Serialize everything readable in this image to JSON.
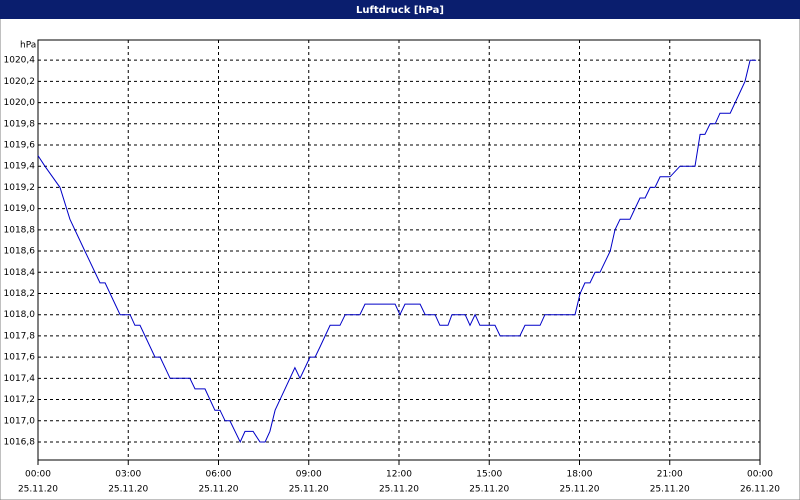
{
  "chart_data": {
    "type": "line",
    "title": "Luftdruck [hPa]",
    "y_label": "hPa",
    "series": [
      {
        "name": "Luftdruck",
        "color": "#0000c8",
        "x": [
          0,
          0.23,
          0.73,
          1.06,
          1.56,
          2.06,
          2.23,
          2.73,
          3.06,
          3.22,
          3.39,
          3.89,
          4.06,
          4.39,
          5.05,
          5.22,
          5.55,
          5.88,
          6.05,
          6.22,
          6.38,
          6.72,
          6.88,
          7.15,
          7.38,
          7.55,
          7.71,
          7.88,
          8.21,
          8.54,
          8.71,
          9.04,
          9.21,
          9.38,
          9.71,
          10.04,
          10.21,
          10.7,
          10.87,
          11.87,
          12.03,
          12.2,
          12.7,
          12.87,
          13.2,
          13.36,
          13.63,
          13.76,
          14.2,
          14.36,
          14.53,
          14.69,
          15.19,
          15.36,
          16.02,
          16.19,
          16.69,
          16.85,
          17.85,
          18.02,
          18.18,
          18.35,
          18.52,
          18.68,
          19.02,
          19.18,
          19.35,
          19.68,
          20.01,
          20.18,
          20.35,
          20.51,
          20.68,
          21.01,
          21.34,
          21.84,
          22.01,
          22.17,
          22.34,
          22.51,
          22.67,
          23.01,
          23.34,
          23.5,
          23.67,
          23.87
        ],
        "values": [
          1019.5,
          1019.4,
          1019.2,
          1018.9,
          1018.6,
          1018.3,
          1018.3,
          1018.0,
          1018.0,
          1017.9,
          1017.9,
          1017.6,
          1017.6,
          1017.4,
          1017.4,
          1017.3,
          1017.3,
          1017.1,
          1017.1,
          1017.0,
          1017.0,
          1016.8,
          1016.9,
          1016.9,
          1016.8,
          1016.8,
          1016.9,
          1017.1,
          1017.3,
          1017.5,
          1017.4,
          1017.6,
          1017.6,
          1017.7,
          1017.9,
          1017.9,
          1018.0,
          1018.0,
          1018.1,
          1018.1,
          1018.0,
          1018.1,
          1018.1,
          1018.0,
          1018.0,
          1017.9,
          1017.9,
          1018.0,
          1018.0,
          1017.9,
          1018.0,
          1017.9,
          1017.9,
          1017.8,
          1017.8,
          1017.9,
          1017.9,
          1018.0,
          1018.0,
          1018.2,
          1018.3,
          1018.3,
          1018.4,
          1018.4,
          1018.6,
          1018.8,
          1018.9,
          1018.9,
          1019.1,
          1019.1,
          1019.2,
          1019.2,
          1019.3,
          1019.3,
          1019.4,
          1019.4,
          1019.7,
          1019.7,
          1019.8,
          1019.8,
          1019.9,
          1019.9,
          1020.1,
          1020.2,
          1020.4,
          1020.4
        ]
      }
    ],
    "xlim": [
      0,
      24
    ],
    "xticks": [
      {
        "value": 0,
        "label": "00:00",
        "date": "25.11.20"
      },
      {
        "value": 3,
        "label": "03:00",
        "date": "25.11.20"
      },
      {
        "value": 6,
        "label": "06:00",
        "date": "25.11.20"
      },
      {
        "value": 9,
        "label": "09:00",
        "date": "25.11.20"
      },
      {
        "value": 12,
        "label": "12:00",
        "date": "25.11.20"
      },
      {
        "value": 15,
        "label": "15:00",
        "date": "25.11.20"
      },
      {
        "value": 18,
        "label": "18:00",
        "date": "25.11.20"
      },
      {
        "value": 21,
        "label": "21:00",
        "date": "25.11.20"
      },
      {
        "value": 24,
        "label": "00:00",
        "date": "26.11.20"
      }
    ],
    "ylim": [
      1016.63,
      1020.59
    ],
    "yticks": [
      {
        "value": 1016.8,
        "label": "1016,8"
      },
      {
        "value": 1017.0,
        "label": "1017,0"
      },
      {
        "value": 1017.2,
        "label": "1017,2"
      },
      {
        "value": 1017.4,
        "label": "1017,4"
      },
      {
        "value": 1017.6,
        "label": "1017,6"
      },
      {
        "value": 1017.8,
        "label": "1017,8"
      },
      {
        "value": 1018.0,
        "label": "1018,0"
      },
      {
        "value": 1018.2,
        "label": "1018,2"
      },
      {
        "value": 1018.4,
        "label": "1018,4"
      },
      {
        "value": 1018.6,
        "label": "1018,6"
      },
      {
        "value": 1018.8,
        "label": "1018,8"
      },
      {
        "value": 1019.0,
        "label": "1019,0"
      },
      {
        "value": 1019.2,
        "label": "1019,2"
      },
      {
        "value": 1019.4,
        "label": "1019,4"
      },
      {
        "value": 1019.6,
        "label": "1019,6"
      },
      {
        "value": 1019.8,
        "label": "1019,8"
      },
      {
        "value": 1020.0,
        "label": "1020,0"
      },
      {
        "value": 1020.2,
        "label": "1020,2"
      },
      {
        "value": 1020.4,
        "label": "1020,4"
      }
    ],
    "grid": true
  }
}
